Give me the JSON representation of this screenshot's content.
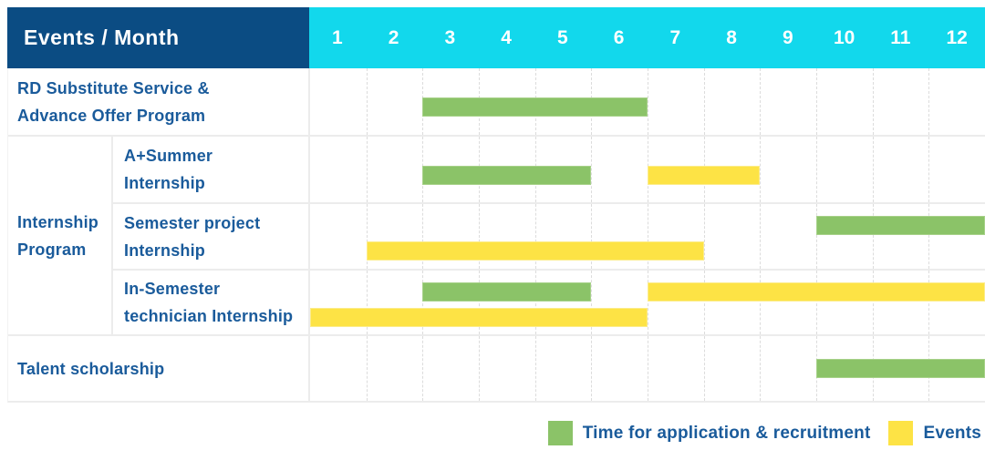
{
  "header": {
    "title": "Events / Month"
  },
  "colors": {
    "navy": "#0b4c83",
    "cyan": "#12d8ec",
    "green": "#8bc368",
    "green_border": "#a7d189",
    "yellow": "#fde345",
    "yellow_border": "#fcec8a",
    "text_blue": "#1a5b9b",
    "grid": "#ececec"
  },
  "chart_data": {
    "type": "gantt",
    "x_axis": {
      "unit": "Month",
      "ticks": [
        "1",
        "2",
        "3",
        "4",
        "5",
        "6",
        "7",
        "8",
        "9",
        "10",
        "11",
        "12"
      ],
      "range": [
        1,
        12
      ]
    },
    "rows": [
      {
        "kind": "simple",
        "label_lines": [
          "RD Substitute Service &",
          "Advance Offer Program"
        ],
        "bars": [
          {
            "series": "Time for application & recruitment",
            "color": "green",
            "start_month": 3,
            "end_month": 6,
            "line": "mid"
          }
        ]
      },
      {
        "kind": "group",
        "label_lines": [
          "Internship",
          "Program"
        ],
        "subrows": [
          {
            "label_lines": [
              "A+Summer",
              "Internship"
            ],
            "bars": [
              {
                "series": "Time for application & recruitment",
                "color": "green",
                "start_month": 3,
                "end_month": 5,
                "line": "mid"
              },
              {
                "series": "Events",
                "color": "yellow",
                "start_month": 7,
                "end_month": 8,
                "line": "mid"
              }
            ]
          },
          {
            "label_lines": [
              "Semester project",
              "Internship"
            ],
            "bars": [
              {
                "series": "Time for application & recruitment",
                "color": "green",
                "start_month": 10,
                "end_month": 12,
                "line": "upper"
              },
              {
                "series": "Events",
                "color": "yellow",
                "start_month": 2,
                "end_month": 7,
                "line": "lower"
              }
            ]
          },
          {
            "label_lines": [
              "In-Semester",
              "technician Internship"
            ],
            "bars": [
              {
                "series": "Time for application & recruitment",
                "color": "green",
                "start_month": 3,
                "end_month": 5,
                "line": "upper"
              },
              {
                "series": "Events",
                "color": "yellow",
                "start_month": 7,
                "end_month": 12,
                "line": "upper"
              },
              {
                "series": "Events",
                "color": "yellow",
                "start_month": 1,
                "end_month": 6,
                "line": "lower"
              }
            ]
          }
        ]
      },
      {
        "kind": "simple",
        "label_lines": [
          "Talent scholarship"
        ],
        "bars": [
          {
            "series": "Time for application & recruitment",
            "color": "green",
            "start_month": 10,
            "end_month": 12,
            "line": "center"
          }
        ]
      }
    ],
    "legend": [
      {
        "color": "green",
        "label": "Time for application & recruitment"
      },
      {
        "color": "yellow",
        "label": "Events"
      }
    ]
  }
}
